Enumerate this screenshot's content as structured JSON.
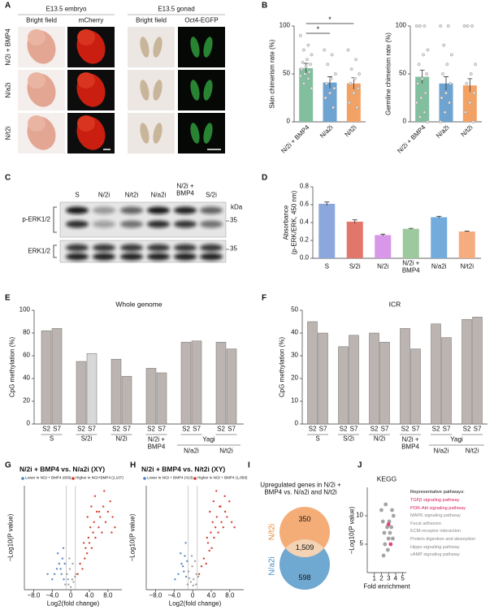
{
  "panel_labels": [
    "A",
    "B",
    "C",
    "D",
    "E",
    "F",
    "G",
    "H",
    "I",
    "J"
  ],
  "embryo": {
    "headers": [
      "E13.5 embryo",
      "E13.5 gonad"
    ],
    "columns": [
      "Bright field",
      "mCherry",
      "Bright field",
      "Oct4-EGFP"
    ],
    "rows": [
      "N/2i + BMP4",
      "N/a2i",
      "N/t2i"
    ]
  },
  "blot": {
    "lanes": [
      "S",
      "N/2i",
      "N/t2i",
      "N/a2i",
      "N/2i + BMP4",
      "S/2i"
    ],
    "unit": "kDa",
    "bands": [
      "p-ERK1/2",
      "ERK1/2"
    ],
    "markers": [
      "35",
      "35"
    ]
  },
  "venn": {
    "title": "Upregulated genes in N/2i + BMP4 vs. N/a2i and N/t2i",
    "sets": [
      "N/t2i",
      "N/a2i"
    ],
    "counts": [
      "350",
      "1,509",
      "598"
    ]
  },
  "chart_data": [
    {
      "type": "bar",
      "ylabel": "Skin chimerism rate (%)",
      "categories": [
        "N/2i + BMP4",
        "N/a2i",
        "N/t2i"
      ],
      "values": [
        56,
        41,
        40
      ],
      "errors": [
        5,
        6,
        6
      ],
      "colors": [
        "#82bf9f",
        "#6fa3d0",
        "#f3a266"
      ],
      "points": [
        [
          90,
          80,
          75,
          70,
          65,
          62,
          60,
          58,
          55,
          52,
          50,
          48,
          45,
          40,
          35
        ],
        [
          75,
          70,
          60,
          50,
          45,
          40,
          35,
          30,
          25,
          15
        ],
        [
          75,
          65,
          55,
          50,
          45,
          40,
          35,
          30,
          20,
          15
        ]
      ],
      "ylim": [
        0,
        100
      ],
      "yticks": [
        0,
        50,
        100
      ],
      "significance": [
        {
          "label": "*",
          "from": 0,
          "to": 1
        },
        {
          "label": "*",
          "from": 0,
          "to": 2
        }
      ]
    },
    {
      "type": "bar",
      "ylabel": "Germline chimerism rate (%)",
      "categories": [
        "N/2i + BMP4",
        "N/a2i",
        "N/t2i"
      ],
      "values": [
        47,
        40,
        38
      ],
      "errors": [
        7,
        7,
        7
      ],
      "colors": [
        "#82bf9f",
        "#6fa3d0",
        "#f3a266"
      ],
      "points": [
        [
          100,
          100,
          100,
          75,
          70,
          60,
          50,
          45,
          40,
          30,
          25,
          20,
          10,
          5,
          0
        ],
        [
          100,
          100,
          80,
          70,
          60,
          50,
          40,
          30,
          25,
          20,
          10,
          0
        ],
        [
          100,
          100,
          100,
          60,
          50,
          40,
          30,
          20,
          10,
          0
        ]
      ],
      "ylim": [
        0,
        100
      ],
      "yticks": [
        0,
        50,
        100
      ]
    },
    {
      "type": "bar",
      "ylabel": [
        "Absorbance",
        "(p-ERK/ERK, 450 nm)"
      ],
      "categories": [
        "S",
        "S/2i",
        "N/2i",
        "N/2i + BMP4",
        "N/a2i",
        "N/t2i"
      ],
      "values": [
        0.61,
        0.41,
        0.26,
        0.33,
        0.46,
        0.3
      ],
      "errors": [
        0.02,
        0.02,
        0.01,
        0.005,
        0.01,
        0.005
      ],
      "colors": [
        "#8ca7dc",
        "#e3766a",
        "#d897e8",
        "#9cc99e",
        "#73abdc",
        "#f5ad80"
      ],
      "ylim": [
        0,
        0.8
      ],
      "yticks": [
        {
          "value": 0,
          "label": "0.0"
        },
        0.2,
        0.4,
        0.6,
        0.8
      ]
    },
    {
      "type": "bar",
      "title": "Whole genome",
      "ylabel": "CpG methylation (%)",
      "categories": [
        "S2",
        "S7",
        "S2",
        "S7",
        "S2",
        "S7",
        "S2",
        "S7",
        "S2",
        "S7",
        "S2",
        "S7"
      ],
      "groups": [
        "S",
        "S/2i",
        "N/2i",
        "N/2i + BMP4",
        "N/a2i",
        "N/t2i"
      ],
      "group_bracket": {
        "label": "Yagi",
        "from": 4,
        "to": 5
      },
      "values": [
        82,
        84,
        55,
        62,
        57,
        42,
        49,
        45,
        72,
        73,
        72,
        66
      ],
      "colors": [
        "#bcb4b0",
        "#bcb4b0",
        "#bcb4b0",
        "#d8d8d8",
        "#bcb4b0",
        "#bcb4b0",
        "#bcb4b0",
        "#bcb4b0",
        "#bcb4b0",
        "#bcb4b0",
        "#bcb4b0",
        "#bcb4b0"
      ],
      "ylim": [
        0,
        100
      ],
      "yticks": [
        0,
        20,
        40,
        60,
        80,
        100
      ]
    },
    {
      "type": "bar",
      "title": "ICR",
      "ylabel": "CpG methylation (%)",
      "categories": [
        "S2",
        "S7",
        "S2",
        "S7",
        "S2",
        "S7",
        "S2",
        "S7",
        "S2",
        "S7",
        "S2",
        "S7"
      ],
      "groups": [
        "S",
        "S/2i",
        "N/2i",
        "N/2i + BMP4",
        "N/a2i",
        "N/t2i"
      ],
      "group_bracket": {
        "label": "Yagi",
        "from": 4,
        "to": 5
      },
      "values": [
        45,
        40,
        34,
        39,
        40,
        36,
        42,
        33,
        44,
        38,
        46,
        47
      ],
      "colors": [
        "#bcb4b0",
        "#bcb4b0",
        "#bcb4b0",
        "#bcb4b0",
        "#bcb4b0",
        "#bcb4b0",
        "#bcb4b0",
        "#bcb4b0",
        "#bcb4b0",
        "#bcb4b0",
        "#bcb4b0",
        "#bcb4b0"
      ],
      "ylim": [
        0,
        50
      ],
      "yticks": [
        0,
        10,
        20,
        30,
        40,
        50
      ]
    },
    {
      "type": "scatter",
      "title": "N/2i + BMP4 vs. N/a2i (XY)",
      "xlabel": "Log2(fold change)",
      "ylabel": "−Log10(P value)",
      "xlim": [
        -10,
        11
      ],
      "xticks": [
        {
          "value": -8,
          "label": "−8.0"
        },
        {
          "value": -4,
          "label": "−4.0"
        },
        0,
        {
          "value": 4,
          "label": "4.0"
        },
        {
          "value": 8,
          "label": "8.0"
        }
      ],
      "ylim": [
        0,
        20
      ],
      "xlines": [
        -1,
        1
      ],
      "series": [
        {
          "color": "#9a9a9a",
          "x": [
            -0.5,
            0.3,
            -0.8,
            0.6,
            -0.2,
            0.9,
            -1.2,
            1.1,
            0,
            -0.6,
            0.4,
            -0.3
          ],
          "values": [
            1,
            2,
            3,
            1.5,
            4,
            2.5,
            1,
            3,
            0.5,
            2,
            5,
            6
          ]
        },
        {
          "name": "Lower in N/2i + BMP4 (609)",
          "color": "#4a7fc1",
          "x": [
            -1.5,
            -2,
            -2.5,
            -3,
            -3.5,
            -1.8,
            -2.2,
            -4,
            -1.3,
            -2.8,
            -1.6,
            -5
          ],
          "values": [
            2,
            3,
            5,
            4,
            3,
            6,
            4,
            2,
            5,
            7,
            8,
            3
          ]
        },
        {
          "name": "Higher in N/2i+BMP4 (2,107)",
          "color": "#d03020",
          "x": [
            1.5,
            2,
            2.5,
            3,
            3.2,
            3.5,
            3.8,
            4,
            4.2,
            4.5,
            4.8,
            5,
            5.3,
            5.6,
            6,
            6.3,
            6.7,
            7,
            7.5,
            8,
            8.5,
            9,
            9.5,
            2.8,
            3.6,
            4.4,
            5.2,
            6.1,
            7.2,
            8.8
          ],
          "values": [
            3,
            5,
            4,
            6,
            8,
            7,
            10,
            9,
            12,
            8,
            11,
            13,
            10,
            15,
            12,
            14,
            11,
            16,
            13,
            15,
            17,
            14,
            12,
            9,
            14,
            16,
            18,
            15,
            19,
            11
          ]
        }
      ]
    },
    {
      "type": "scatter",
      "title": "N/2i + BMP4 vs. N/t2i (XY)",
      "xlabel": "Log2(fold change)",
      "ylabel": "−Log10(P value)",
      "xlim": [
        -10,
        11
      ],
      "xticks": [
        {
          "value": -8,
          "label": "−8.0"
        },
        {
          "value": -4,
          "label": "−4.0"
        },
        0,
        {
          "value": 4,
          "label": "4.0"
        },
        {
          "value": 8,
          "label": "8.0"
        }
      ],
      "ylim": [
        0,
        20
      ],
      "xlines": [
        -1,
        1
      ],
      "series": [
        {
          "color": "#9a9a9a",
          "x": [
            -0.4,
            0.2,
            -0.9,
            0.7,
            -0.1,
            0.8,
            -1.1,
            1.2,
            0.1,
            -0.7,
            0.5,
            -0.2
          ],
          "values": [
            1.5,
            2,
            3.5,
            1,
            4.5,
            3,
            1,
            2.5,
            0.8,
            2.2,
            5.5,
            6.5
          ]
        },
        {
          "name": "Lower in N/2i + BMP4 (413)",
          "color": "#4a7fc1",
          "x": [
            -1.4,
            -1.9,
            -2.4,
            -3.1,
            -1.7,
            -2.1,
            -3.8,
            -1.2,
            -2.6,
            -1.5
          ],
          "values": [
            2.5,
            3.5,
            5,
            3,
            6.5,
            4.5,
            2,
            5.5,
            7,
            9
          ]
        },
        {
          "name": "Higher in N/2i + BMP4 (1,859)",
          "color": "#d03020",
          "x": [
            1.4,
            1.9,
            2.4,
            2.9,
            3.3,
            3.6,
            3.9,
            4.1,
            4.3,
            4.6,
            4.9,
            5.2,
            5.5,
            5.8,
            6.2,
            6.6,
            7,
            7.4,
            7.9,
            8.4,
            9,
            3.1,
            3.7,
            4.5,
            5.1,
            6,
            6.9
          ],
          "values": [
            3,
            4.5,
            6,
            5,
            9,
            7.5,
            11,
            8,
            13,
            10,
            12,
            14,
            11,
            16,
            13,
            12,
            15,
            14,
            17,
            13,
            12,
            10,
            15,
            17,
            19,
            16,
            18
          ]
        }
      ]
    },
    {
      "type": "scatter",
      "title": "KEGG",
      "xlabel": "Fold enrichment",
      "ylabel": "−Log10(P value)",
      "xlim": [
        0,
        5.5
      ],
      "xticks": [
        1,
        2,
        3,
        4,
        5
      ],
      "ylim": [
        0,
        15
      ],
      "yticks": [
        5,
        10
      ],
      "series": [
        {
          "color": "#9a9a9a",
          "x": [
            2.0,
            2.2,
            2.4,
            2.5,
            2.6,
            2.8,
            3.0,
            3.1,
            3.2,
            3.4,
            3.5,
            3.7,
            2.3,
            2.9,
            3.6
          ],
          "values": [
            11,
            9,
            7,
            5,
            12,
            8,
            6,
            9,
            7,
            8,
            11,
            10,
            3,
            4,
            6
          ]
        },
        {
          "color": "#e0306a",
          "x": [
            3.0,
            3.3
          ],
          "values": [
            8.5,
            5.0
          ]
        }
      ],
      "legend_title": "Representative pathways:",
      "pathways": [
        "TGFβ signaling pathway",
        "PI3K-Akt signaling pathway",
        "MAPK signaling pathway",
        "Focal adhesion",
        "ECM-receptor interaction",
        "Protein digestion and absorption",
        "Hippo signaling pathway",
        "cAMP signaling pathway"
      ],
      "pathway_colors": [
        "#d81b60",
        "#d81b60",
        "#888888",
        "#888888",
        "#888888",
        "#888888",
        "#888888",
        "#888888"
      ]
    }
  ]
}
